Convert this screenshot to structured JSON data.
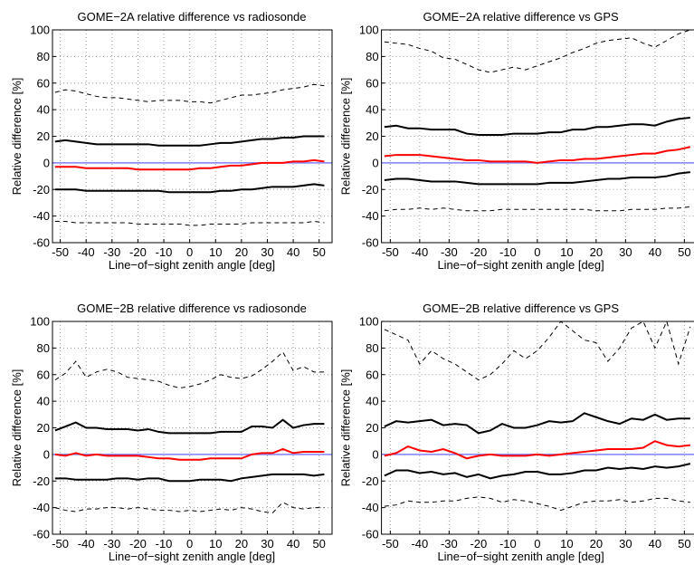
{
  "chart_data": [
    {
      "type": "line",
      "title": "GOME−2A relative difference vs radiosonde",
      "xlabel": "Line−of−sight zenith angle [deg]",
      "ylabel": "Relative difference [%]",
      "x": [
        -52,
        -48,
        -44,
        -40,
        -36,
        -32,
        -28,
        -24,
        -20,
        -16,
        -12,
        -8,
        -4,
        0,
        4,
        8,
        12,
        16,
        20,
        24,
        28,
        32,
        36,
        40,
        44,
        48,
        52
      ],
      "series": [
        {
          "color": "#000000",
          "dash": true,
          "values": [
            53,
            55,
            54,
            52,
            50,
            49,
            49,
            48,
            47,
            46,
            47,
            47,
            47,
            46,
            46,
            45,
            47,
            49,
            51,
            51,
            52,
            53,
            55,
            56,
            57,
            59,
            58
          ]
        },
        {
          "color": "#000000",
          "dash": false,
          "values": [
            16,
            17,
            16,
            15,
            14,
            14,
            14,
            14,
            14,
            14,
            13,
            13,
            13,
            13,
            13,
            14,
            15,
            15,
            16,
            17,
            18,
            18,
            19,
            19,
            20,
            20,
            20
          ]
        },
        {
          "color": "#ff0000",
          "dash": false,
          "values": [
            -3,
            -3,
            -3,
            -4,
            -4,
            -4,
            -4,
            -4,
            -5,
            -5,
            -5,
            -5,
            -5,
            -5,
            -4,
            -4,
            -3,
            -2,
            -2,
            -1,
            0,
            0,
            0,
            1,
            1,
            2,
            1
          ]
        },
        {
          "color": "#000000",
          "dash": false,
          "values": [
            -20,
            -20,
            -20,
            -21,
            -21,
            -21,
            -21,
            -21,
            -21,
            -21,
            -21,
            -22,
            -22,
            -22,
            -22,
            -22,
            -21,
            -21,
            -20,
            -20,
            -19,
            -18,
            -18,
            -18,
            -17,
            -16,
            -17
          ]
        },
        {
          "color": "#000000",
          "dash": true,
          "values": [
            -44,
            -44,
            -45,
            -45,
            -45,
            -45,
            -45,
            -45,
            -46,
            -46,
            -46,
            -46,
            -46,
            -47,
            -47,
            -46,
            -46,
            -46,
            -46,
            -45,
            -45,
            -45,
            -45,
            -45,
            -45,
            -44,
            -45
          ]
        }
      ],
      "reference_line": {
        "value": 0,
        "color": "#8080ff"
      },
      "xlim": [
        -53,
        55
      ],
      "ylim": [
        -60,
        100
      ],
      "xticks": [
        -50,
        -40,
        -30,
        -20,
        -10,
        0,
        10,
        20,
        30,
        40,
        50
      ],
      "yticks": [
        -60,
        -40,
        -20,
        0,
        20,
        40,
        60,
        80,
        100
      ],
      "grid": true
    },
    {
      "type": "line",
      "title": "GOME−2A relative difference vs GPS",
      "xlabel": "Line−of−sight zenith angle [deg]",
      "ylabel": "Relative difference [%]",
      "x": [
        -52,
        -48,
        -44,
        -40,
        -36,
        -32,
        -28,
        -24,
        -20,
        -16,
        -12,
        -8,
        -4,
        0,
        4,
        8,
        12,
        16,
        20,
        24,
        28,
        32,
        36,
        40,
        44,
        48,
        52
      ],
      "series": [
        {
          "color": "#000000",
          "dash": true,
          "values": [
            91,
            90,
            89,
            86,
            84,
            79,
            78,
            74,
            70,
            68,
            70,
            72,
            70,
            73,
            76,
            79,
            83,
            86,
            90,
            92,
            93,
            94,
            90,
            87,
            92,
            97,
            100
          ]
        },
        {
          "color": "#000000",
          "dash": false,
          "values": [
            27,
            28,
            26,
            26,
            25,
            25,
            25,
            22,
            21,
            21,
            21,
            22,
            22,
            22,
            23,
            23,
            25,
            25,
            27,
            27,
            28,
            29,
            29,
            28,
            31,
            33,
            34
          ]
        },
        {
          "color": "#ff0000",
          "dash": false,
          "values": [
            5,
            6,
            6,
            6,
            5,
            4,
            3,
            2,
            2,
            1,
            1,
            1,
            1,
            0,
            1,
            2,
            2,
            3,
            3,
            4,
            5,
            6,
            7,
            7,
            9,
            10,
            12
          ]
        },
        {
          "color": "#000000",
          "dash": false,
          "values": [
            -13,
            -12,
            -12,
            -13,
            -14,
            -14,
            -14,
            -15,
            -16,
            -16,
            -16,
            -16,
            -16,
            -16,
            -15,
            -15,
            -15,
            -14,
            -13,
            -12,
            -12,
            -11,
            -11,
            -11,
            -10,
            -8,
            -7
          ]
        },
        {
          "color": "#000000",
          "dash": true,
          "values": [
            -36,
            -35,
            -35,
            -34,
            -35,
            -34,
            -35,
            -36,
            -36,
            -36,
            -35,
            -35,
            -35,
            -35,
            -35,
            -35,
            -35,
            -35,
            -36,
            -36,
            -36,
            -35,
            -35,
            -35,
            -34,
            -34,
            -33
          ]
        }
      ],
      "reference_line": {
        "value": 0,
        "color": "#8080ff"
      },
      "xlim": [
        -53,
        55
      ],
      "ylim": [
        -60,
        100
      ],
      "xticks": [
        -50,
        -40,
        -30,
        -20,
        -10,
        0,
        10,
        20,
        30,
        40,
        50
      ],
      "yticks": [
        -60,
        -40,
        -20,
        0,
        20,
        40,
        60,
        80,
        100
      ],
      "grid": true
    },
    {
      "type": "line",
      "title": "GOME−2B relative difference vs radiosonde",
      "xlabel": "Line−of−sight zenith angle [deg]",
      "ylabel": "Relative difference [%]",
      "x": [
        -52,
        -48,
        -44,
        -40,
        -36,
        -32,
        -28,
        -24,
        -20,
        -16,
        -12,
        -8,
        -4,
        0,
        4,
        8,
        12,
        16,
        20,
        24,
        28,
        32,
        36,
        40,
        44,
        48,
        52
      ],
      "series": [
        {
          "color": "#000000",
          "dash": true,
          "values": [
            56,
            61,
            70,
            58,
            62,
            64,
            62,
            58,
            57,
            56,
            55,
            52,
            50,
            51,
            53,
            56,
            60,
            58,
            57,
            59,
            64,
            70,
            77,
            63,
            66,
            62,
            62
          ]
        },
        {
          "color": "#000000",
          "dash": false,
          "values": [
            18,
            21,
            24,
            20,
            20,
            19,
            19,
            19,
            18,
            19,
            17,
            16,
            16,
            16,
            16,
            16,
            17,
            17,
            17,
            21,
            21,
            20,
            26,
            20,
            22,
            23,
            23
          ]
        },
        {
          "color": "#ff0000",
          "dash": false,
          "values": [
            0,
            -1,
            1,
            -1,
            0,
            -1,
            -1,
            -1,
            -1,
            -2,
            -3,
            -3,
            -4,
            -4,
            -4,
            -3,
            -3,
            -3,
            -3,
            0,
            1,
            1,
            4,
            1,
            2,
            2,
            2
          ]
        },
        {
          "color": "#000000",
          "dash": false,
          "values": [
            -18,
            -18,
            -19,
            -19,
            -19,
            -19,
            -18,
            -18,
            -19,
            -18,
            -18,
            -20,
            -20,
            -20,
            -19,
            -19,
            -19,
            -20,
            -18,
            -17,
            -16,
            -15,
            -15,
            -15,
            -15,
            -16,
            -15
          ]
        },
        {
          "color": "#000000",
          "dash": true,
          "values": [
            -40,
            -42,
            -43,
            -41,
            -41,
            -40,
            -40,
            -41,
            -40,
            -41,
            -42,
            -42,
            -43,
            -42,
            -43,
            -42,
            -41,
            -42,
            -40,
            -41,
            -43,
            -44,
            -36,
            -40,
            -41,
            -40,
            -40
          ]
        }
      ],
      "reference_line": {
        "value": 0,
        "color": "#8080ff"
      },
      "xlim": [
        -53,
        55
      ],
      "ylim": [
        -60,
        100
      ],
      "xticks": [
        -50,
        -40,
        -30,
        -20,
        -10,
        0,
        10,
        20,
        30,
        40,
        50
      ],
      "yticks": [
        -60,
        -40,
        -20,
        0,
        20,
        40,
        60,
        80,
        100
      ],
      "grid": true
    },
    {
      "type": "line",
      "title": "GOME−2B relative difference vs GPS",
      "xlabel": "Line−of−sight zenith angle [deg]",
      "ylabel": "Relative difference [%]",
      "x": [
        -52,
        -48,
        -44,
        -40,
        -36,
        -32,
        -28,
        -24,
        -20,
        -16,
        -12,
        -8,
        -4,
        0,
        4,
        8,
        12,
        16,
        20,
        24,
        28,
        32,
        36,
        40,
        44,
        48,
        52
      ],
      "series": [
        {
          "color": "#000000",
          "dash": true,
          "values": [
            94,
            90,
            86,
            68,
            78,
            72,
            68,
            62,
            56,
            60,
            68,
            78,
            72,
            78,
            88,
            100,
            93,
            86,
            84,
            70,
            80,
            95,
            100,
            80,
            100,
            68,
            96
          ]
        },
        {
          "color": "#000000",
          "dash": false,
          "values": [
            21,
            25,
            24,
            25,
            26,
            22,
            23,
            22,
            16,
            18,
            23,
            20,
            20,
            22,
            25,
            24,
            25,
            31,
            28,
            25,
            23,
            27,
            26,
            30,
            26,
            27,
            27
          ]
        },
        {
          "color": "#ff0000",
          "dash": false,
          "values": [
            -1,
            1,
            6,
            3,
            2,
            4,
            1,
            -3,
            -1,
            0,
            -1,
            -1,
            -1,
            0,
            -1,
            0,
            1,
            2,
            3,
            4,
            4,
            4,
            5,
            10,
            7,
            6,
            7
          ]
        },
        {
          "color": "#000000",
          "dash": false,
          "values": [
            -16,
            -12,
            -12,
            -14,
            -13,
            -15,
            -14,
            -17,
            -15,
            -18,
            -16,
            -15,
            -13,
            -13,
            -15,
            -15,
            -14,
            -12,
            -12,
            -10,
            -11,
            -10,
            -11,
            -9,
            -10,
            -9,
            -7
          ]
        },
        {
          "color": "#000000",
          "dash": true,
          "values": [
            -39,
            -38,
            -35,
            -36,
            -36,
            -35,
            -35,
            -33,
            -32,
            -33,
            -36,
            -34,
            -35,
            -37,
            -39,
            -42,
            -39,
            -36,
            -35,
            -35,
            -34,
            -36,
            -35,
            -33,
            -33,
            -35,
            -36
          ]
        }
      ],
      "reference_line": {
        "value": 0,
        "color": "#8080ff"
      },
      "xlim": [
        -53,
        55
      ],
      "ylim": [
        -60,
        100
      ],
      "xticks": [
        -50,
        -40,
        -30,
        -20,
        -10,
        0,
        10,
        20,
        30,
        40,
        50
      ],
      "yticks": [
        -60,
        -40,
        -20,
        0,
        20,
        40,
        60,
        80,
        100
      ],
      "grid": true
    }
  ]
}
